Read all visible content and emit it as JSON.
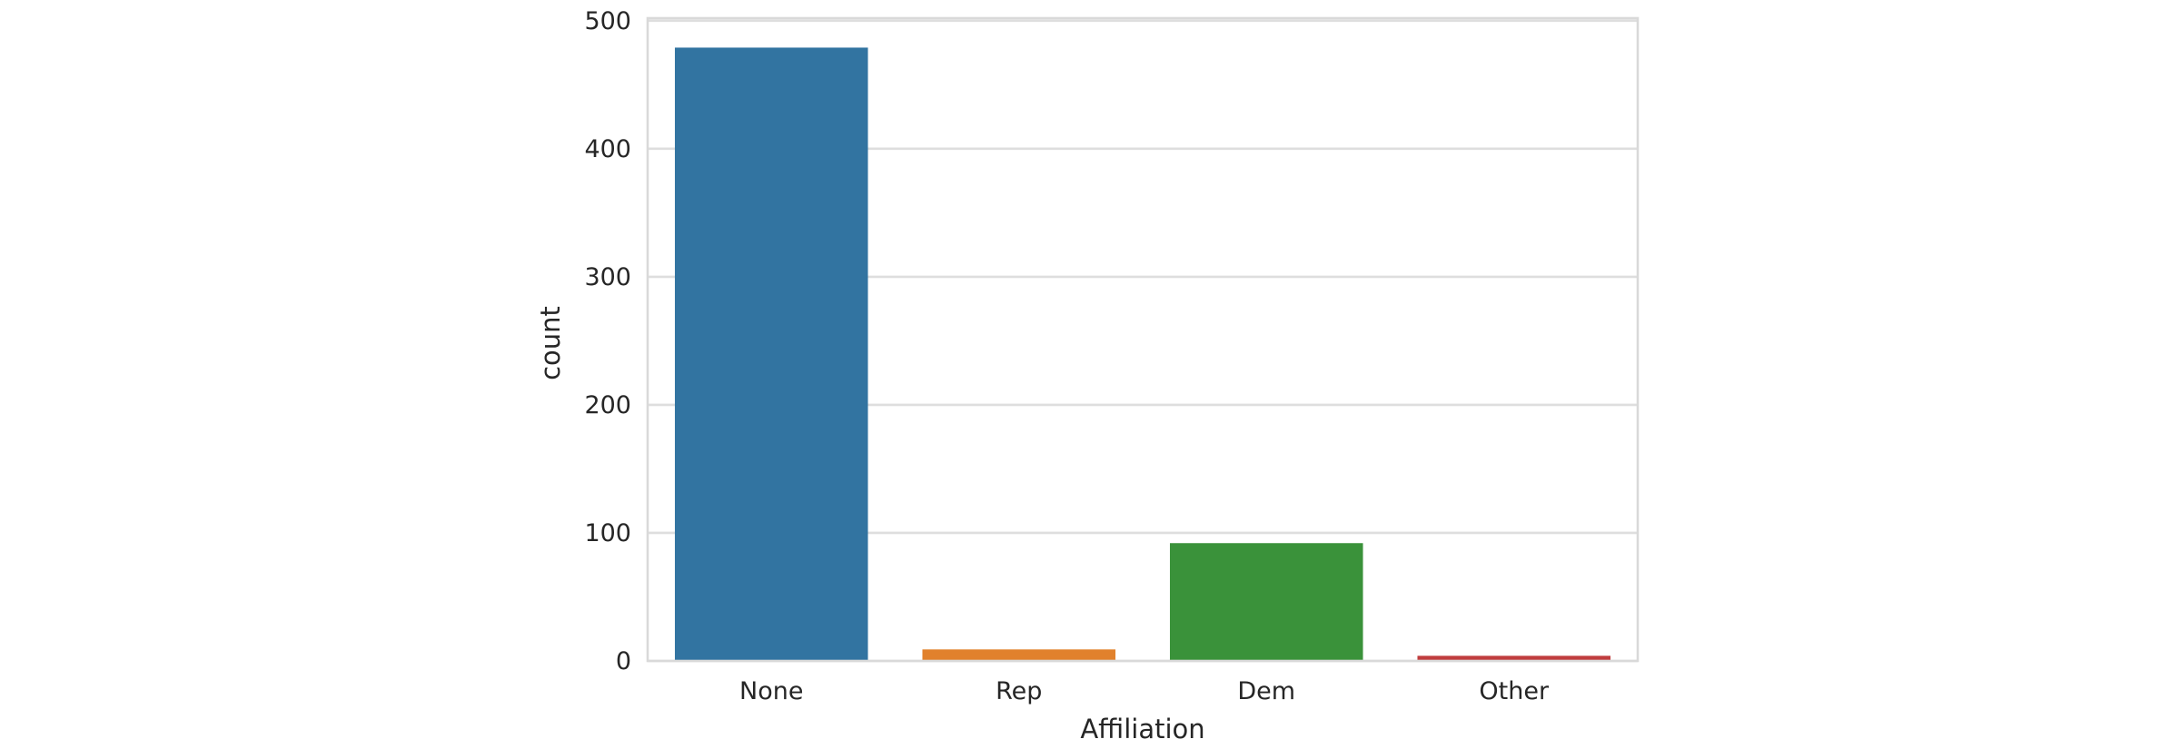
{
  "chart_data": {
    "type": "bar",
    "categories": [
      "None",
      "Rep",
      "Dem",
      "Other"
    ],
    "values": [
      479,
      9,
      92,
      4
    ],
    "colors": [
      "#3274a1",
      "#e1812c",
      "#3a923a",
      "#c03d3e"
    ],
    "title": "",
    "xlabel": "Affiliation",
    "ylabel": "count",
    "ylim": [
      0,
      502
    ],
    "yticks": [
      0,
      100,
      200,
      300,
      400,
      500
    ],
    "grid": true,
    "legend": false
  }
}
